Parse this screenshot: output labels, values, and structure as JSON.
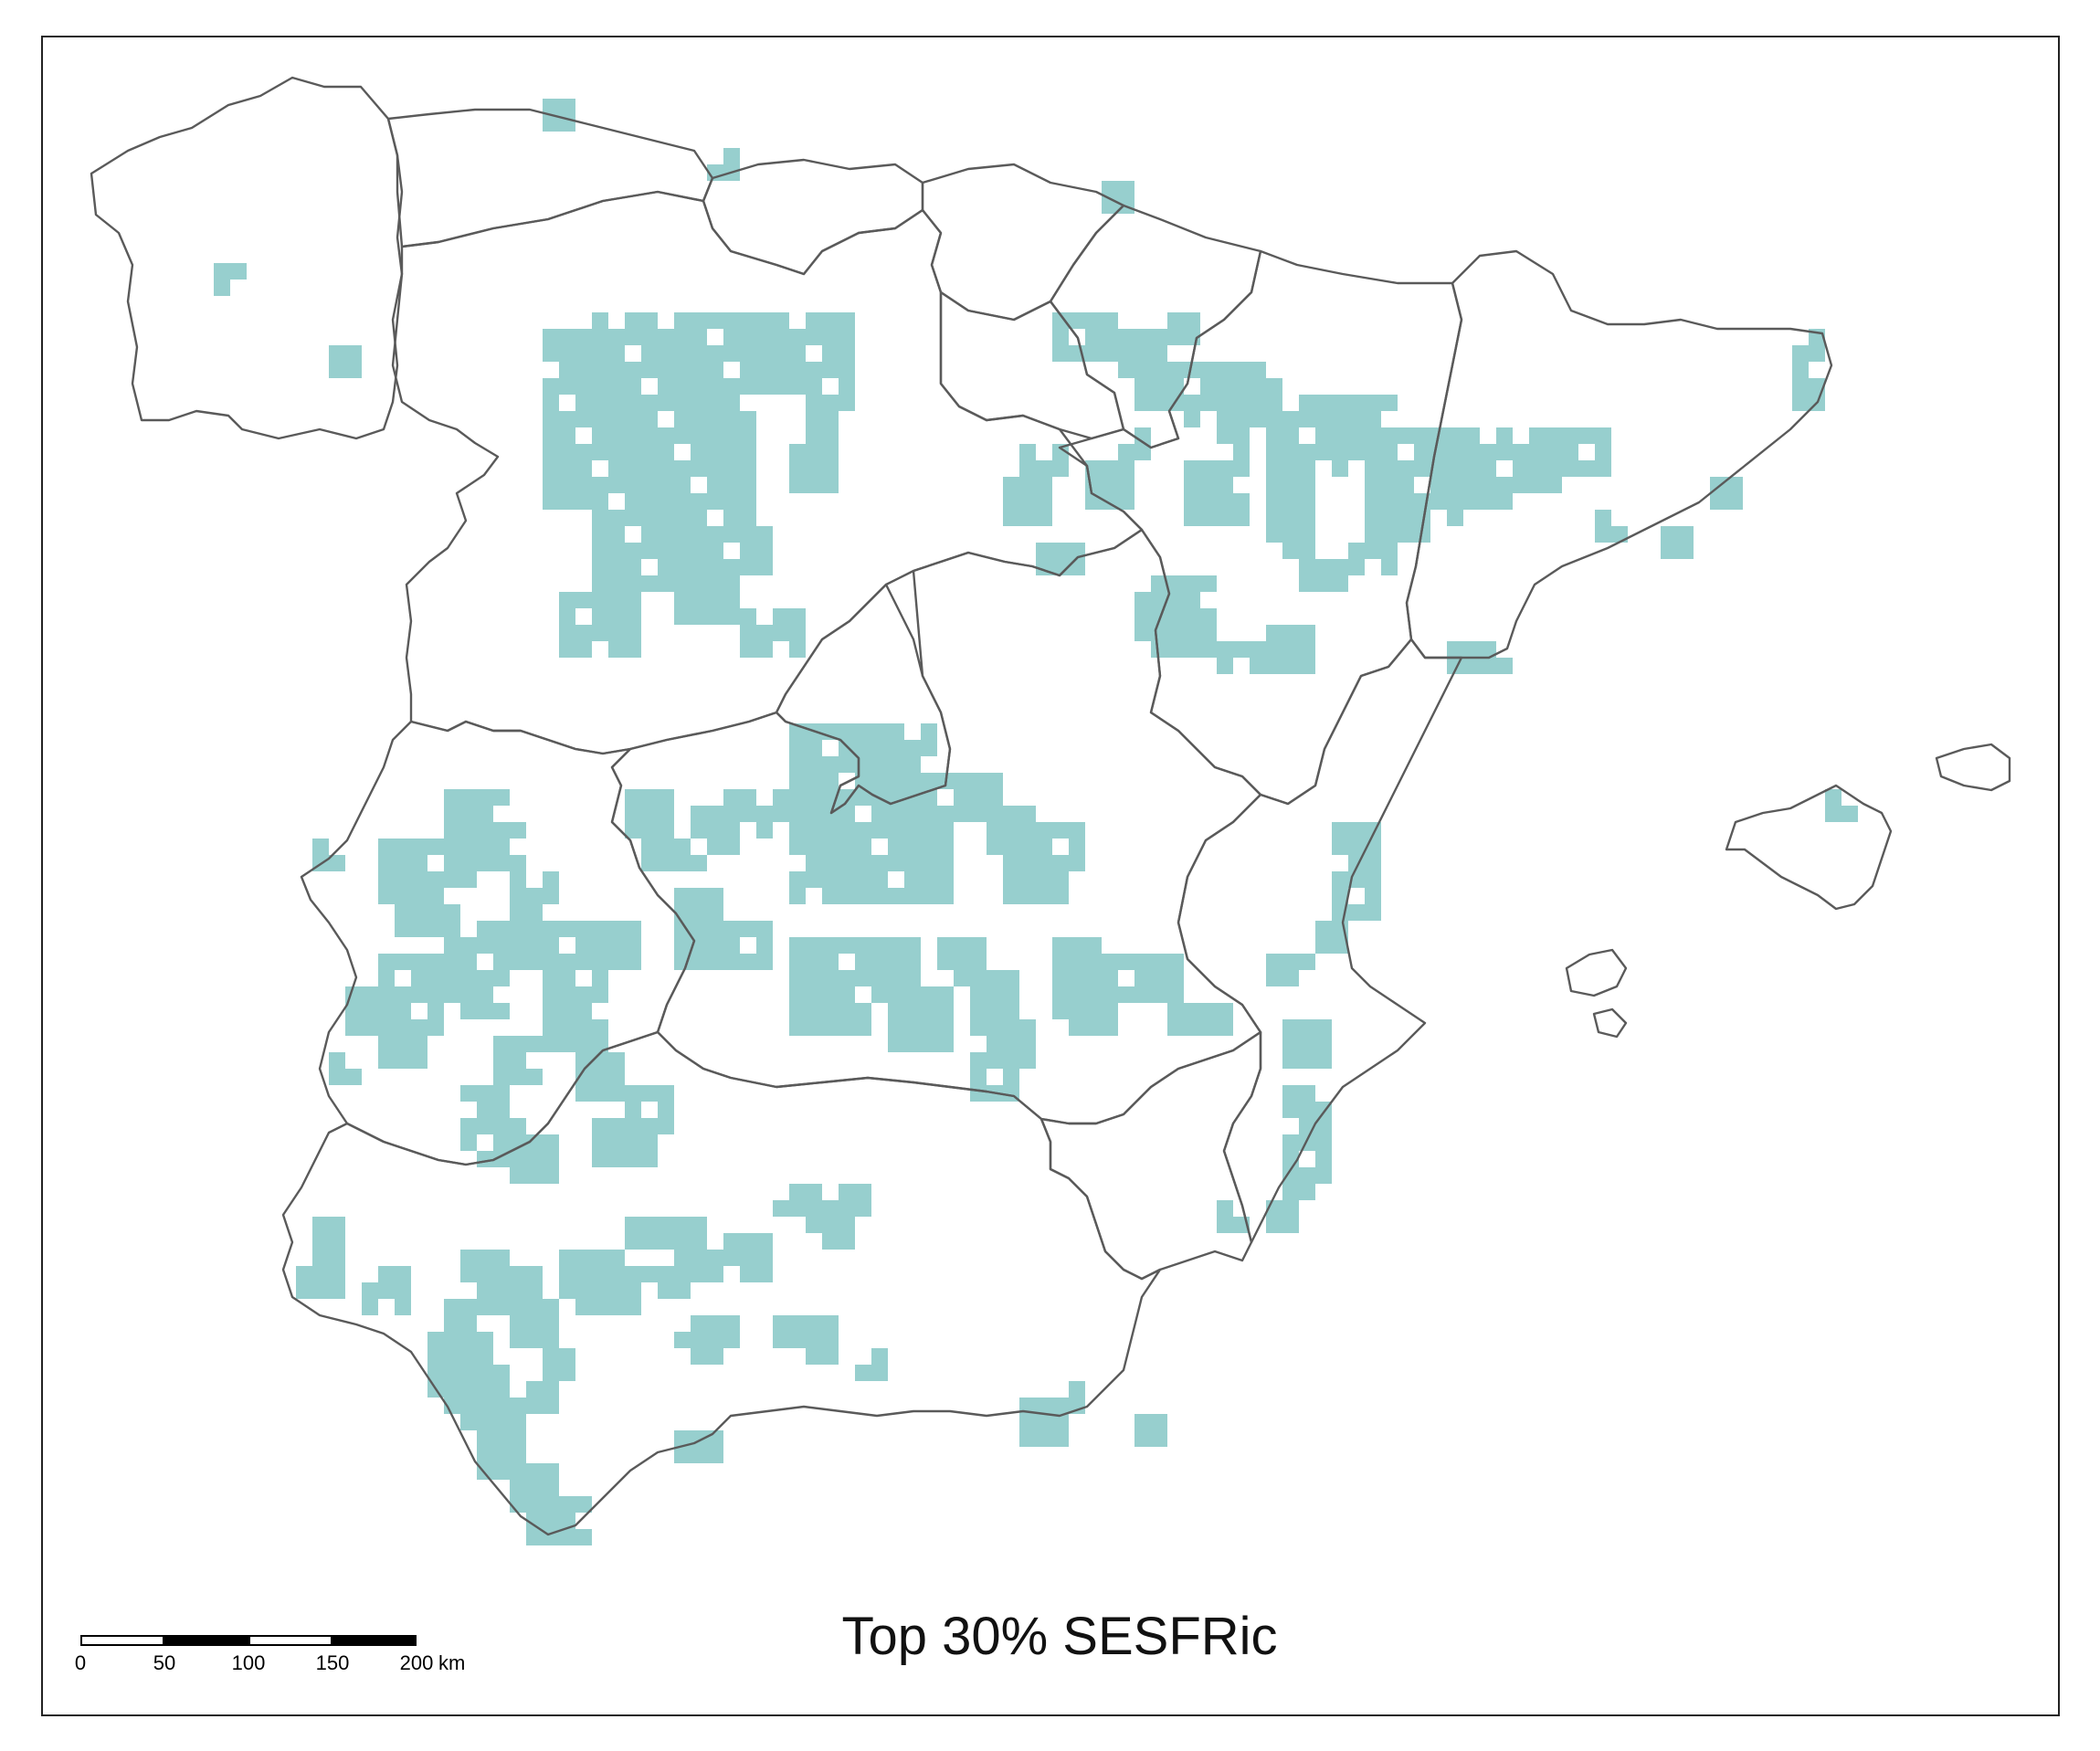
{
  "map": {
    "title": "Top 30% SESFRic",
    "accent_color": "#97cfce",
    "boundary_color": "#5a5a5a",
    "scale_bar": {
      "ticks": [
        "0",
        "50",
        "100",
        "150",
        "200"
      ],
      "unit": "km"
    }
  }
}
